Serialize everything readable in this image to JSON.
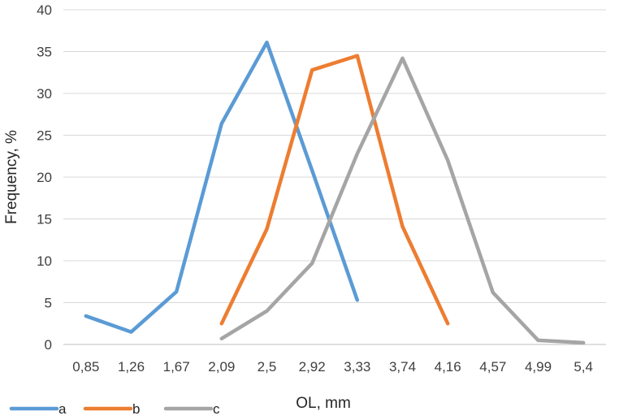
{
  "chart_data": {
    "type": "line",
    "title": "",
    "xlabel": "OL, mm",
    "ylabel": "Frequency, %",
    "categories": [
      "0,85",
      "1,26",
      "1,67",
      "2,09",
      "2,5",
      "2,92",
      "3,33",
      "3,74",
      "4,16",
      "4,57",
      "4,99",
      "5,4"
    ],
    "ylim": [
      0,
      40
    ],
    "yticks": [
      0,
      5,
      10,
      15,
      20,
      25,
      30,
      35,
      40
    ],
    "grid": true,
    "legend_position": "bottom-left",
    "series": [
      {
        "name": "a",
        "color": "#5B9BD5",
        "values": [
          3.4,
          1.5,
          6.3,
          26.4,
          36.1,
          20.8,
          5.3,
          null,
          null,
          null,
          null,
          null
        ]
      },
      {
        "name": "b",
        "color": "#ED7D31",
        "values": [
          null,
          null,
          null,
          2.5,
          13.8,
          32.8,
          34.5,
          14.1,
          2.5,
          null,
          null,
          null
        ]
      },
      {
        "name": "c",
        "color": "#A5A5A5",
        "values": [
          null,
          null,
          null,
          0.7,
          4.0,
          9.7,
          22.8,
          34.2,
          22.0,
          6.2,
          0.5,
          0.2
        ]
      }
    ]
  }
}
